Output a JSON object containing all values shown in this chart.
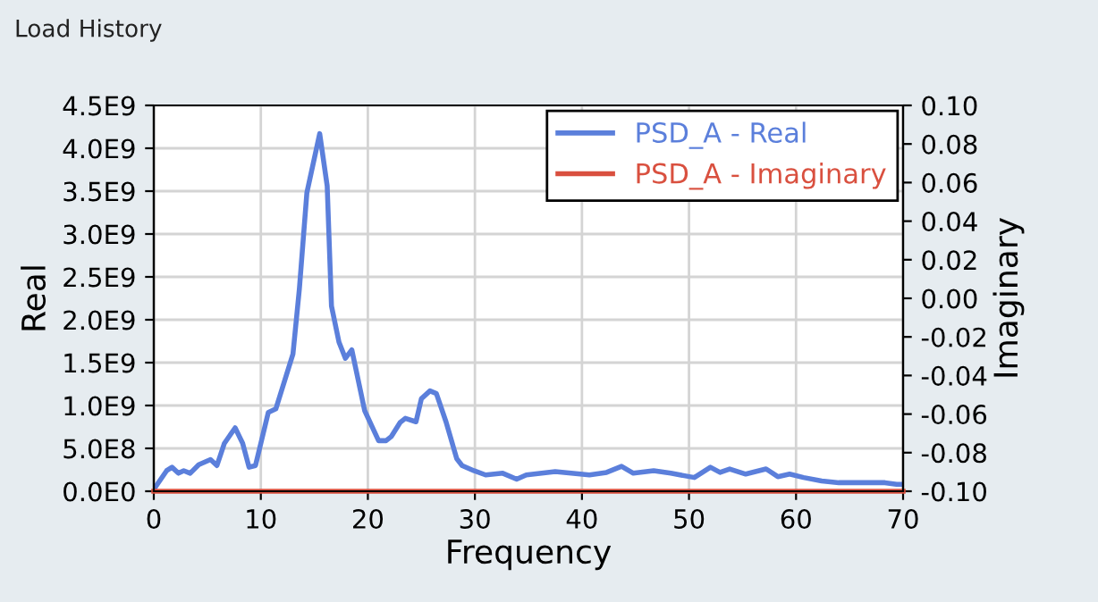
{
  "chart_data": {
    "type": "line",
    "title": "Load History",
    "xlabel": "Frequency",
    "ylabel": "Real",
    "y2label": "Imaginary",
    "xlim": [
      0,
      70
    ],
    "xticks": [
      0,
      10,
      20,
      30,
      40,
      50,
      60,
      70
    ],
    "ylim": [
      0,
      4500000000
    ],
    "yticks": [
      {
        "value": 0,
        "label": "0.0E0"
      },
      {
        "value": 500000000,
        "label": "5.0E8"
      },
      {
        "value": 1000000000,
        "label": "1.0E9"
      },
      {
        "value": 1500000000,
        "label": "1.5E9"
      },
      {
        "value": 2000000000,
        "label": "2.0E9"
      },
      {
        "value": 2500000000,
        "label": "2.5E9"
      },
      {
        "value": 3000000000,
        "label": "3.0E9"
      },
      {
        "value": 3500000000,
        "label": "3.5E9"
      },
      {
        "value": 4000000000,
        "label": "4.0E9"
      },
      {
        "value": 4500000000,
        "label": "4.5E9"
      }
    ],
    "y2lim": [
      -0.1,
      0.1
    ],
    "y2ticks": [
      {
        "value": -0.1,
        "label": "-0.10"
      },
      {
        "value": -0.08,
        "label": "-0.08"
      },
      {
        "value": -0.06,
        "label": "-0.06"
      },
      {
        "value": -0.04,
        "label": "-0.04"
      },
      {
        "value": -0.02,
        "label": "-0.02"
      },
      {
        "value": 0,
        "label": "0.00"
      },
      {
        "value": 0.02,
        "label": "0.02"
      },
      {
        "value": 0.04,
        "label": "0.04"
      },
      {
        "value": 0.06,
        "label": "0.06"
      },
      {
        "value": 0.08,
        "label": "0.08"
      },
      {
        "value": 0.1,
        "label": "0.10"
      }
    ],
    "grid": true,
    "legend": "top right",
    "marker": "none",
    "line_style": "solid",
    "series": [
      {
        "name": "PSD_A - Real",
        "color": "#5b7fdb",
        "x": [
          0.1,
          1.2,
          1.7,
          2.3,
          2.8,
          3.4,
          4.2,
          5.3,
          5.9,
          6.6,
          7.6,
          8.3,
          8.9,
          9.5,
          10.7,
          11.4,
          13.0,
          13.6,
          14.3,
          15.5,
          16.2,
          16.6,
          17.3,
          17.9,
          18.5,
          19.7,
          21.0,
          21.7,
          22.2,
          23.0,
          23.5,
          24.5,
          25.0,
          25.8,
          26.4,
          27.3,
          28.3,
          28.8,
          29.9,
          31.0,
          32.6,
          33.9,
          34.8,
          37.5,
          40.7,
          42.3,
          43.7,
          44.8,
          46.7,
          48.3,
          50.5,
          52.0,
          52.9,
          53.8,
          55.3,
          57.2,
          58.3,
          59.4,
          60.7,
          62.4,
          64.0,
          68.3,
          69.4,
          70.0
        ],
        "values": [
          40000000,
          240000000,
          280000000,
          210000000,
          240000000,
          210000000,
          310000000,
          370000000,
          300000000,
          560000000,
          740000000,
          560000000,
          280000000,
          300000000,
          920000000,
          960000000,
          1600000000,
          2360000000,
          3480000000,
          4170000000,
          3560000000,
          2160000000,
          1740000000,
          1550000000,
          1650000000,
          940000000,
          590000000,
          590000000,
          640000000,
          800000000,
          850000000,
          810000000,
          1080000000,
          1170000000,
          1140000000,
          810000000,
          380000000,
          300000000,
          240000000,
          190000000,
          210000000,
          140000000,
          190000000,
          230000000,
          190000000,
          220000000,
          290000000,
          210000000,
          240000000,
          210000000,
          160000000,
          280000000,
          220000000,
          260000000,
          200000000,
          260000000,
          170000000,
          200000000,
          160000000,
          120000000,
          100000000,
          100000000,
          80000000,
          80000000
        ]
      },
      {
        "name": "PSD_A - Imaginary",
        "color": "#d9503f",
        "axis": "y2",
        "x": [
          0,
          70
        ],
        "values": [
          -0.1,
          -0.1
        ]
      }
    ]
  }
}
